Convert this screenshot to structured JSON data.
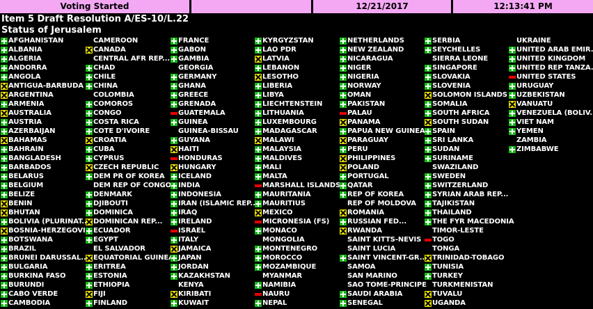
{
  "header": {
    "voting_status": "Voting Started",
    "date": "12/21/2017",
    "time": "12:13:41 PM"
  },
  "title": "Item 5 Draft Resolution A/ES-10/L.22",
  "subtitle": "Status of Jerusalem",
  "colors": {
    "header_bg": "#f4a8f4",
    "yes": "#18b818",
    "no": "#e60000",
    "abstain": "#e8e000",
    "bg": "#000000"
  },
  "columns": [
    [
      {
        "name": "AFGHANISTAN",
        "vote": "yes"
      },
      {
        "name": "ALBANIA",
        "vote": "yes"
      },
      {
        "name": "ALGERIA",
        "vote": "yes"
      },
      {
        "name": "ANDORRA",
        "vote": "yes"
      },
      {
        "name": "ANGOLA",
        "vote": "yes"
      },
      {
        "name": "ANTIGUA-BARBUDA",
        "vote": "abstain"
      },
      {
        "name": "ARGENTINA",
        "vote": "abstain"
      },
      {
        "name": "ARMENIA",
        "vote": "yes"
      },
      {
        "name": "AUSTRALIA",
        "vote": "abstain"
      },
      {
        "name": "AUSTRIA",
        "vote": "yes"
      },
      {
        "name": "AZERBAIJAN",
        "vote": "yes"
      },
      {
        "name": "BAHAMAS",
        "vote": "abstain"
      },
      {
        "name": "BAHRAIN",
        "vote": "yes"
      },
      {
        "name": "BANGLADESH",
        "vote": "yes"
      },
      {
        "name": "BARBADOS",
        "vote": "yes"
      },
      {
        "name": "BELARUS",
        "vote": "yes"
      },
      {
        "name": "BELGIUM",
        "vote": "yes"
      },
      {
        "name": "BELIZE",
        "vote": "yes"
      },
      {
        "name": "BENIN",
        "vote": "abstain"
      },
      {
        "name": "BHUTAN",
        "vote": "abstain"
      },
      {
        "name": "BOLIVIA (PLURINAT...",
        "vote": "yes"
      },
      {
        "name": "BOSNIA-HERZEGOVI...",
        "vote": "abstain"
      },
      {
        "name": "BOTSWANA",
        "vote": "yes"
      },
      {
        "name": "BRAZIL",
        "vote": "yes"
      },
      {
        "name": "BRUNEI DARUSSAL...",
        "vote": "yes"
      },
      {
        "name": "BULGARIA",
        "vote": "yes"
      },
      {
        "name": "BURKINA FASO",
        "vote": "yes"
      },
      {
        "name": "BURUNDI",
        "vote": "yes"
      },
      {
        "name": "CABO VERDE",
        "vote": "yes"
      },
      {
        "name": "CAMBODIA",
        "vote": "yes"
      }
    ],
    [
      {
        "name": "CAMEROON",
        "vote": "none"
      },
      {
        "name": "CANADA",
        "vote": "abstain"
      },
      {
        "name": "CENTRAL AFR REP....",
        "vote": "none"
      },
      {
        "name": "CHAD",
        "vote": "yes"
      },
      {
        "name": "CHILE",
        "vote": "yes"
      },
      {
        "name": "CHINA",
        "vote": "yes"
      },
      {
        "name": "COLOMBIA",
        "vote": "none"
      },
      {
        "name": "COMOROS",
        "vote": "yes"
      },
      {
        "name": "CONGO",
        "vote": "yes"
      },
      {
        "name": "COSTA RICA",
        "vote": "yes"
      },
      {
        "name": "COTE D'IVOIRE",
        "vote": "yes"
      },
      {
        "name": "CROATIA",
        "vote": "abstain"
      },
      {
        "name": "CUBA",
        "vote": "yes"
      },
      {
        "name": "CYPRUS",
        "vote": "yes"
      },
      {
        "name": "CZECH REPUBLIC",
        "vote": "abstain"
      },
      {
        "name": "DEM PR OF KOREA",
        "vote": "yes"
      },
      {
        "name": "DEM REP OF CONGO",
        "vote": "none"
      },
      {
        "name": "DENMARK",
        "vote": "yes"
      },
      {
        "name": "DJIBOUTI",
        "vote": "yes"
      },
      {
        "name": "DOMINICA",
        "vote": "yes"
      },
      {
        "name": "DOMINICAN REP...",
        "vote": "abstain"
      },
      {
        "name": "ECUADOR",
        "vote": "yes"
      },
      {
        "name": "EGYPT",
        "vote": "yes"
      },
      {
        "name": "EL SALVADOR",
        "vote": "none"
      },
      {
        "name": "EQUATORIAL GUINEA",
        "vote": "abstain"
      },
      {
        "name": "ERITREA",
        "vote": "yes"
      },
      {
        "name": "ESTONIA",
        "vote": "yes"
      },
      {
        "name": "ETHIOPIA",
        "vote": "yes"
      },
      {
        "name": "FIJI",
        "vote": "abstain"
      },
      {
        "name": "FINLAND",
        "vote": "yes"
      }
    ],
    [
      {
        "name": "FRANCE",
        "vote": "yes"
      },
      {
        "name": "GABON",
        "vote": "yes"
      },
      {
        "name": "GAMBIA",
        "vote": "yes"
      },
      {
        "name": "GEORGIA",
        "vote": "none"
      },
      {
        "name": "GERMANY",
        "vote": "yes"
      },
      {
        "name": "GHANA",
        "vote": "yes"
      },
      {
        "name": "GREECE",
        "vote": "yes"
      },
      {
        "name": "GRENADA",
        "vote": "yes"
      },
      {
        "name": "GUATEMALA",
        "vote": "no"
      },
      {
        "name": "GUINEA",
        "vote": "yes"
      },
      {
        "name": "GUINEA-BISSAU",
        "vote": "none"
      },
      {
        "name": "GUYANA",
        "vote": "yes"
      },
      {
        "name": "HAITI",
        "vote": "abstain"
      },
      {
        "name": "HONDURAS",
        "vote": "no"
      },
      {
        "name": "HUNGARY",
        "vote": "abstain"
      },
      {
        "name": "ICELAND",
        "vote": "yes"
      },
      {
        "name": "INDIA",
        "vote": "yes"
      },
      {
        "name": "INDONESIA",
        "vote": "yes"
      },
      {
        "name": "IRAN (ISLAMIC REP...",
        "vote": "yes"
      },
      {
        "name": "IRAQ",
        "vote": "yes"
      },
      {
        "name": "IRELAND",
        "vote": "yes"
      },
      {
        "name": "ISRAEL",
        "vote": "no"
      },
      {
        "name": "ITALY",
        "vote": "yes"
      },
      {
        "name": "JAMAICA",
        "vote": "abstain"
      },
      {
        "name": "JAPAN",
        "vote": "yes"
      },
      {
        "name": "JORDAN",
        "vote": "yes"
      },
      {
        "name": "KAZAKHSTAN",
        "vote": "yes"
      },
      {
        "name": "KENYA",
        "vote": "none"
      },
      {
        "name": "KIRIBATI",
        "vote": "abstain"
      },
      {
        "name": "KUWAIT",
        "vote": "yes"
      }
    ],
    [
      {
        "name": "KYRGYZSTAN",
        "vote": "yes"
      },
      {
        "name": "LAO PDR",
        "vote": "yes"
      },
      {
        "name": "LATVIA",
        "vote": "abstain"
      },
      {
        "name": "LEBANON",
        "vote": "yes"
      },
      {
        "name": "LESOTHO",
        "vote": "abstain"
      },
      {
        "name": "LIBERIA",
        "vote": "yes"
      },
      {
        "name": "LIBYA",
        "vote": "yes"
      },
      {
        "name": "LIECHTENSTEIN",
        "vote": "yes"
      },
      {
        "name": "LITHUANIA",
        "vote": "yes"
      },
      {
        "name": "LUXEMBOURG",
        "vote": "yes"
      },
      {
        "name": "MADAGASCAR",
        "vote": "yes"
      },
      {
        "name": "MALAWI",
        "vote": "abstain"
      },
      {
        "name": "MALAYSIA",
        "vote": "yes"
      },
      {
        "name": "MALDIVES",
        "vote": "yes"
      },
      {
        "name": "MALI",
        "vote": "yes"
      },
      {
        "name": "MALTA",
        "vote": "yes"
      },
      {
        "name": "MARSHALL ISLANDS",
        "vote": "no"
      },
      {
        "name": "MAURITANIA",
        "vote": "yes"
      },
      {
        "name": "MAURITIUS",
        "vote": "yes"
      },
      {
        "name": "MEXICO",
        "vote": "abstain"
      },
      {
        "name": "MICRONESIA (FS)",
        "vote": "no"
      },
      {
        "name": "MONACO",
        "vote": "yes"
      },
      {
        "name": "MONGOLIA",
        "vote": "none"
      },
      {
        "name": "MONTENEGRO",
        "vote": "yes"
      },
      {
        "name": "MOROCCO",
        "vote": "yes"
      },
      {
        "name": "MOZAMBIQUE",
        "vote": "yes"
      },
      {
        "name": "MYANMAR",
        "vote": "none"
      },
      {
        "name": "NAMIBIA",
        "vote": "yes"
      },
      {
        "name": "NAURU",
        "vote": "no"
      },
      {
        "name": "NEPAL",
        "vote": "yes"
      }
    ],
    [
      {
        "name": "NETHERLANDS",
        "vote": "yes"
      },
      {
        "name": "NEW ZEALAND",
        "vote": "yes"
      },
      {
        "name": "NICARAGUA",
        "vote": "yes"
      },
      {
        "name": "NIGER",
        "vote": "yes"
      },
      {
        "name": "NIGERIA",
        "vote": "yes"
      },
      {
        "name": "NORWAY",
        "vote": "yes"
      },
      {
        "name": "OMAN",
        "vote": "yes"
      },
      {
        "name": "PAKISTAN",
        "vote": "yes"
      },
      {
        "name": "PALAU",
        "vote": "no"
      },
      {
        "name": "PANAMA",
        "vote": "abstain"
      },
      {
        "name": "PAPUA NEW GUINEA",
        "vote": "yes"
      },
      {
        "name": "PARAGUAY",
        "vote": "abstain"
      },
      {
        "name": "PERU",
        "vote": "yes"
      },
      {
        "name": "PHILIPPINES",
        "vote": "abstain"
      },
      {
        "name": "POLAND",
        "vote": "abstain"
      },
      {
        "name": "PORTUGAL",
        "vote": "yes"
      },
      {
        "name": "QATAR",
        "vote": "yes"
      },
      {
        "name": "REP OF KOREA",
        "vote": "yes"
      },
      {
        "name": "REP OF MOLDOVA",
        "vote": "none"
      },
      {
        "name": "ROMANIA",
        "vote": "abstain"
      },
      {
        "name": "RUSSIAN FED...",
        "vote": "yes"
      },
      {
        "name": "RWANDA",
        "vote": "abstain"
      },
      {
        "name": "SAINT KITTS-NEVIS",
        "vote": "none"
      },
      {
        "name": "SAINT LUCIA",
        "vote": "none"
      },
      {
        "name": "SAINT VINCENT-GR...",
        "vote": "yes"
      },
      {
        "name": "SAMOA",
        "vote": "none"
      },
      {
        "name": "SAN MARINO",
        "vote": "none"
      },
      {
        "name": "SAO TOME-PRINCIPE",
        "vote": "none"
      },
      {
        "name": "SAUDI ARABIA",
        "vote": "yes"
      },
      {
        "name": "SENEGAL",
        "vote": "yes"
      }
    ],
    [
      {
        "name": "SERBIA",
        "vote": "yes"
      },
      {
        "name": "SEYCHELLES",
        "vote": "yes"
      },
      {
        "name": "SIERRA LEONE",
        "vote": "none"
      },
      {
        "name": "SINGAPORE",
        "vote": "yes"
      },
      {
        "name": "SLOVAKIA",
        "vote": "yes"
      },
      {
        "name": "SLOVENIA",
        "vote": "yes"
      },
      {
        "name": "SOLOMON ISLANDS",
        "vote": "abstain"
      },
      {
        "name": "SOMALIA",
        "vote": "yes"
      },
      {
        "name": "SOUTH AFRICA",
        "vote": "yes"
      },
      {
        "name": "SOUTH SUDAN",
        "vote": "abstain"
      },
      {
        "name": "SPAIN",
        "vote": "yes"
      },
      {
        "name": "SRI LANKA",
        "vote": "yes"
      },
      {
        "name": "SUDAN",
        "vote": "yes"
      },
      {
        "name": "SURINAME",
        "vote": "yes"
      },
      {
        "name": "SWAZILAND",
        "vote": "none"
      },
      {
        "name": "SWEDEN",
        "vote": "yes"
      },
      {
        "name": "SWITZERLAND",
        "vote": "yes"
      },
      {
        "name": "SYRIAN ARAB REP...",
        "vote": "yes"
      },
      {
        "name": "TAJIKISTAN",
        "vote": "yes"
      },
      {
        "name": "THAILAND",
        "vote": "yes"
      },
      {
        "name": "THE FYR MACEDONIA",
        "vote": "yes"
      },
      {
        "name": "TIMOR-LESTE",
        "vote": "none"
      },
      {
        "name": "TOGO",
        "vote": "no"
      },
      {
        "name": "TONGA",
        "vote": "none"
      },
      {
        "name": "TRINIDAD-TOBAGO",
        "vote": "abstain"
      },
      {
        "name": "TUNISIA",
        "vote": "yes"
      },
      {
        "name": "TURKEY",
        "vote": "yes"
      },
      {
        "name": "TURKMENISTAN",
        "vote": "none"
      },
      {
        "name": "TUVALU",
        "vote": "abstain"
      },
      {
        "name": "UGANDA",
        "vote": "abstain"
      }
    ],
    [
      {
        "name": "UKRAINE",
        "vote": "none"
      },
      {
        "name": "UNITED ARAB EMIR...",
        "vote": "yes"
      },
      {
        "name": "UNITED KINGDOM",
        "vote": "yes"
      },
      {
        "name": "UNITED REP TANZA...",
        "vote": "yes"
      },
      {
        "name": "UNITED STATES",
        "vote": "no"
      },
      {
        "name": "URUGUAY",
        "vote": "yes"
      },
      {
        "name": "UZBEKISTAN",
        "vote": "yes"
      },
      {
        "name": "VANUATU",
        "vote": "abstain"
      },
      {
        "name": "VENEZUELA (BOLIV...",
        "vote": "yes"
      },
      {
        "name": "VIET NAM",
        "vote": "yes"
      },
      {
        "name": "YEMEN",
        "vote": "yes"
      },
      {
        "name": "ZAMBIA",
        "vote": "none"
      },
      {
        "name": "ZIMBABWE",
        "vote": "yes"
      }
    ]
  ]
}
